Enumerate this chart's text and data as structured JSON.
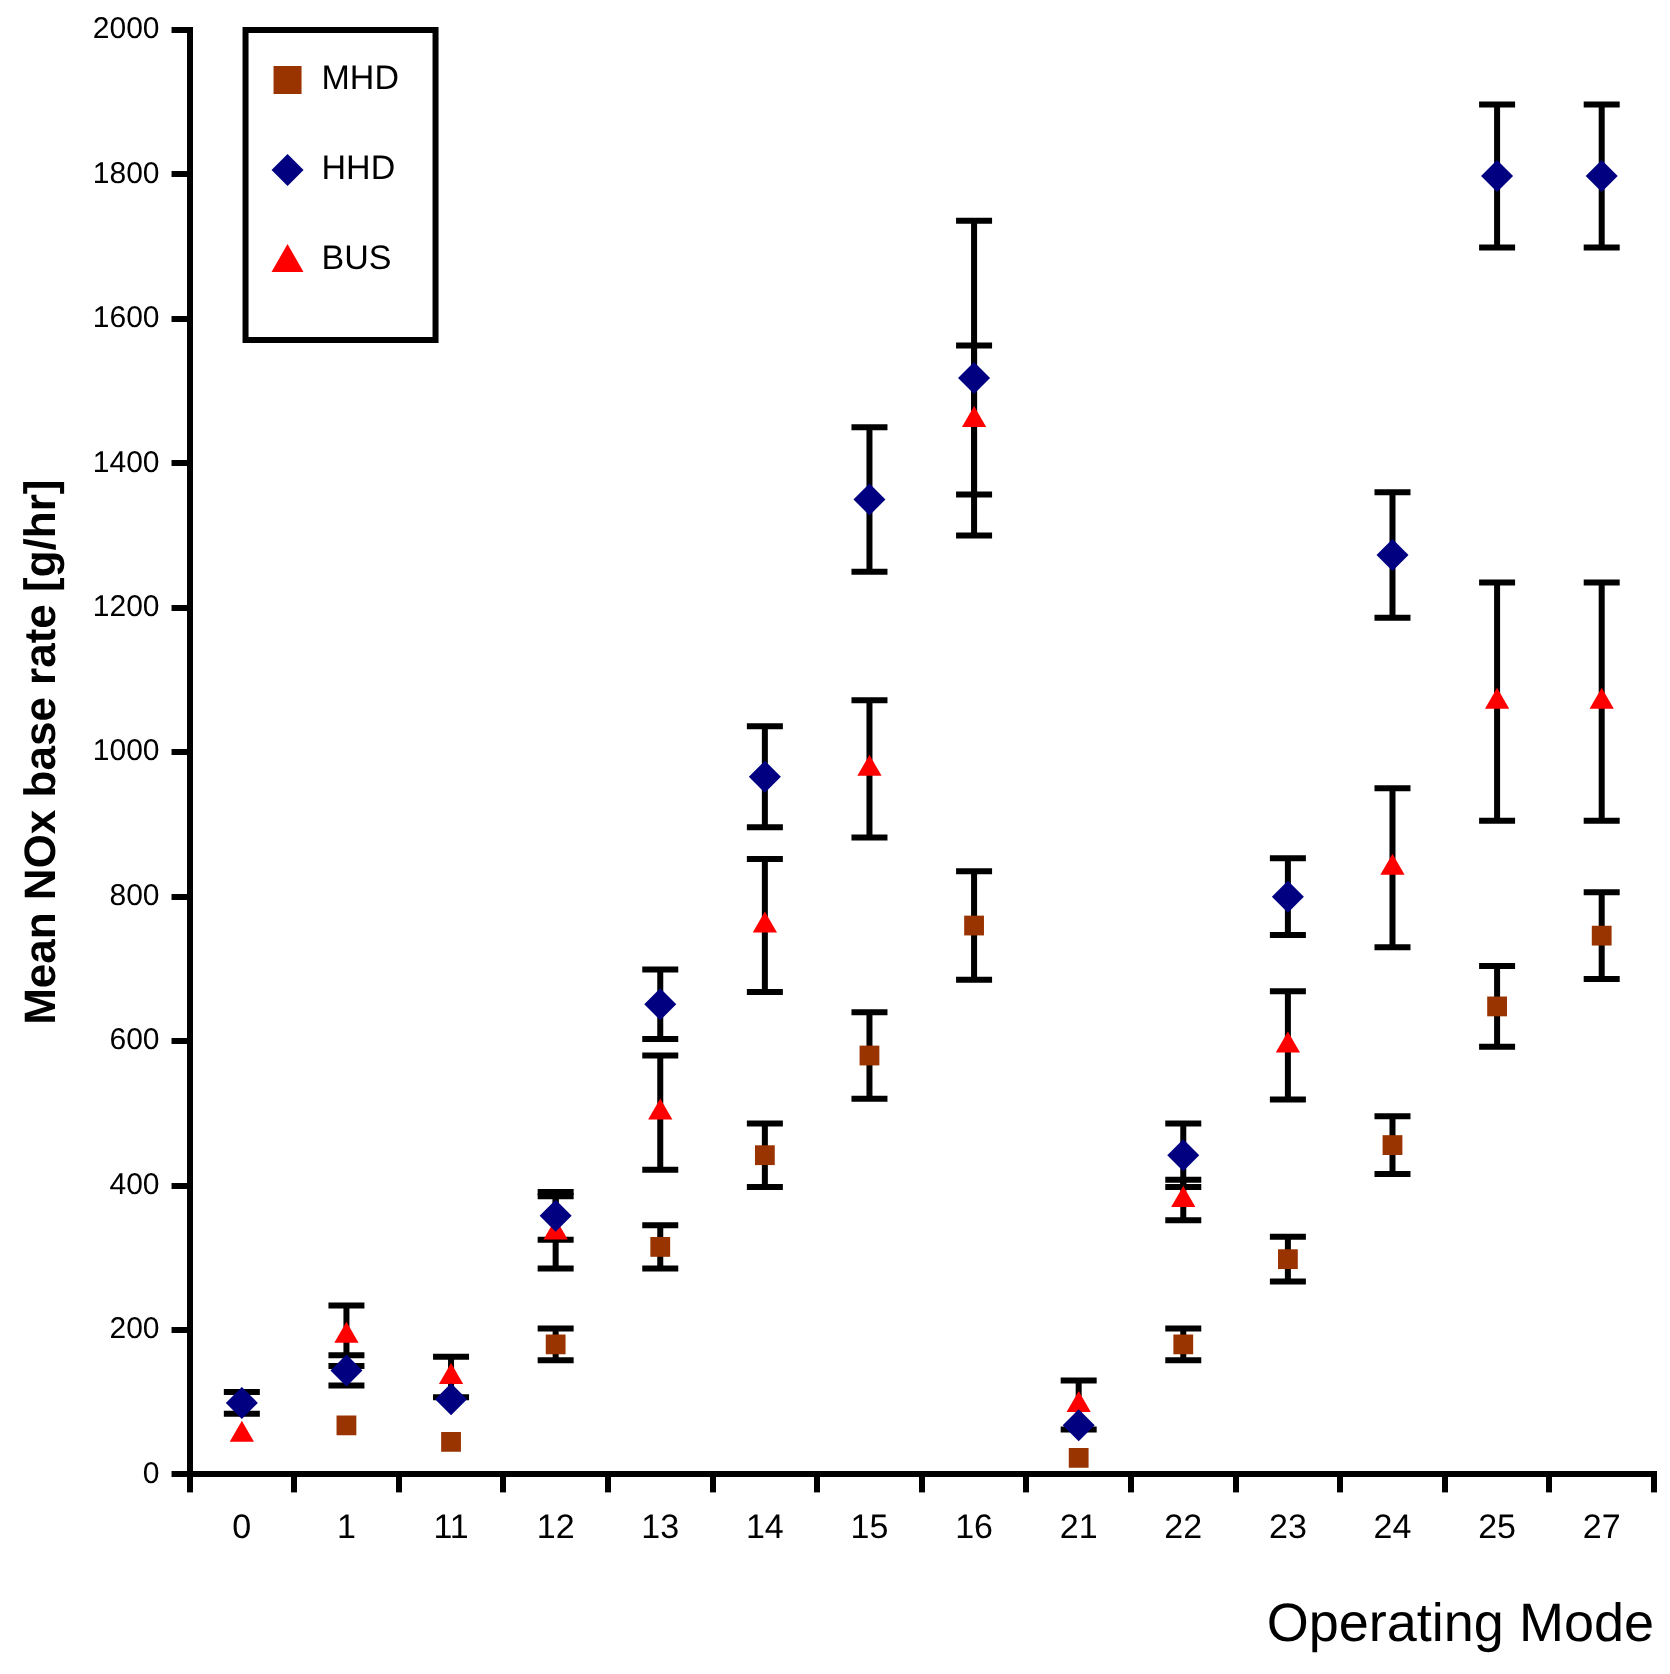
{
  "chart_data": {
    "type": "scatter",
    "xlabel": "Operating Mode",
    "ylabel": "Mean NOx base rate [g/hr]",
    "categories": [
      "0",
      "1",
      "11",
      "12",
      "13",
      "14",
      "15",
      "16",
      "21",
      "22",
      "23",
      "24",
      "25",
      "27"
    ],
    "ylim": [
      0,
      2000
    ],
    "yticks": [
      0,
      200,
      400,
      600,
      800,
      1000,
      1200,
      1400,
      1600,
      1800,
      2000
    ],
    "grid": false,
    "legend": "top left",
    "series": [
      {
        "name": "MHD",
        "color": "#993300",
        "marker": "square",
        "values": [
          null,
          68,
          45,
          180,
          315,
          442,
          580,
          760,
          23,
          180,
          298,
          456,
          648,
          746
        ],
        "errors": [
          null,
          null,
          null,
          22,
          30,
          44,
          60,
          75,
          null,
          22,
          31,
          40,
          56,
          60
        ]
      },
      {
        "name": "HHD",
        "color": "#000080",
        "marker": "diamond",
        "values": [
          99,
          144,
          104,
          358,
          651,
          966,
          1350,
          1518,
          68,
          442,
          800,
          1273,
          1798,
          1798
        ],
        "errors": [
          15,
          21,
          null,
          33,
          48,
          70,
          100,
          218,
          null,
          44,
          53,
          87,
          99,
          99
        ]
      },
      {
        "name": "BUS",
        "color": "#ff0000",
        "marker": "triangle",
        "values": [
          55,
          192,
          135,
          335,
          501,
          760,
          977,
          1460,
          96,
          380,
          594,
          840,
          1070,
          1070
        ],
        "errors": [
          null,
          42,
          28,
          50,
          79,
          92,
          95,
          103,
          34,
          28,
          75,
          110,
          165,
          165
        ]
      }
    ]
  }
}
